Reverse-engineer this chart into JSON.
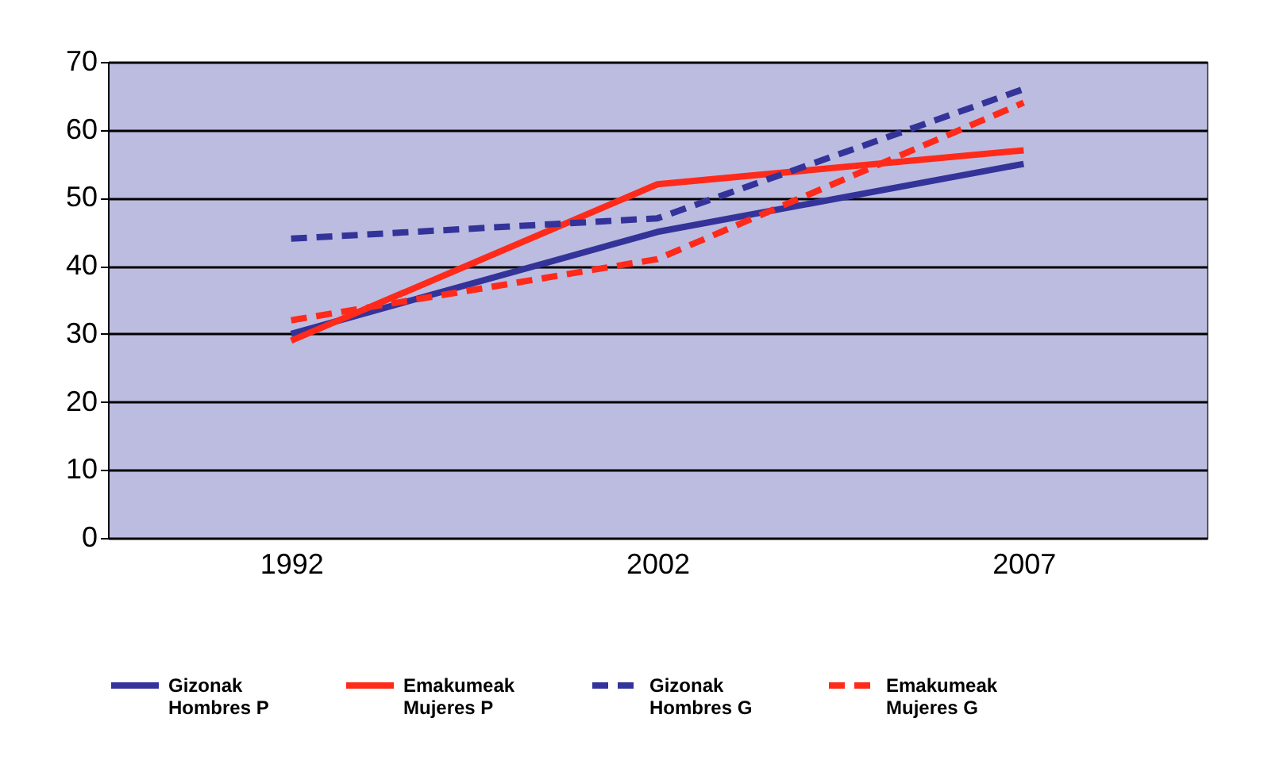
{
  "chart_data": {
    "type": "line",
    "categories": [
      "1992",
      "2002",
      "2007"
    ],
    "series": [
      {
        "name": "Gizonak\nHombres P",
        "color": "#333399",
        "line_style": "solid",
        "values": [
          30,
          45,
          55
        ]
      },
      {
        "name": "Emakumeak\nMujeres P",
        "color": "#ff2a1a",
        "line_style": "solid",
        "values": [
          29,
          52,
          57
        ]
      },
      {
        "name": "Gizonak\nHombres G",
        "color": "#333399",
        "line_style": "dashed",
        "values": [
          44,
          47,
          66
        ]
      },
      {
        "name": "Emakumeak\nMujeres G",
        "color": "#ff2a1a",
        "line_style": "dashed",
        "values": [
          32,
          41,
          64
        ]
      }
    ],
    "ylim": [
      0,
      70
    ],
    "yticks": [
      0,
      10,
      20,
      30,
      40,
      50,
      60,
      70
    ],
    "grid": "y",
    "legend": "bottom"
  }
}
